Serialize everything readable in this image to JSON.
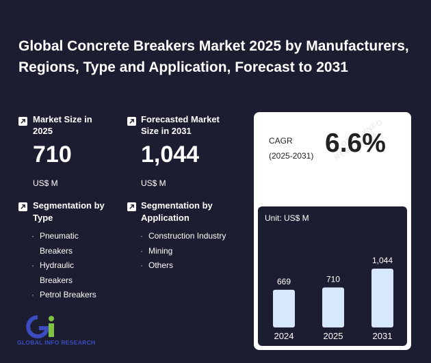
{
  "title": "Global Concrete Breakers Market 2025 by Manufacturers, Regions, Type and Application, Forecast to 2031",
  "market_size": {
    "label": "Market Size in 2025",
    "value": "710",
    "unit": "US$ M"
  },
  "forecast_size": {
    "label": "Forecasted Market Size in 2031",
    "value": "1,044",
    "unit": "US$ M"
  },
  "seg_type": {
    "label": "Segmentation by Type",
    "items": [
      "Pneumatic Breakers",
      "Hydraulic Breakers",
      "Petrol Breakers"
    ]
  },
  "seg_app": {
    "label": "Segmentation by Application",
    "items": [
      "Construction Industry",
      "Mining",
      "Others"
    ]
  },
  "cagr": {
    "label": "CAGR",
    "period": "(2025-2031)",
    "value": "6.6%"
  },
  "logo": {
    "text": "GLOBAL INFO RESEARCH",
    "watermark": "GLOBAL INFO RESEARCH"
  },
  "colors": {
    "background": "#1c1d30",
    "bar": "#d7e8fb",
    "logo_blue": "#3b4cc0",
    "logo_green": "#7fc241"
  },
  "chart_data": {
    "type": "bar",
    "unit_label": "Unit: US$ M",
    "categories": [
      "2024",
      "2025",
      "2031"
    ],
    "values": [
      669,
      710,
      1044
    ],
    "value_labels": [
      "669",
      "710",
      "1,044"
    ],
    "ylim": [
      0,
      1100
    ]
  }
}
